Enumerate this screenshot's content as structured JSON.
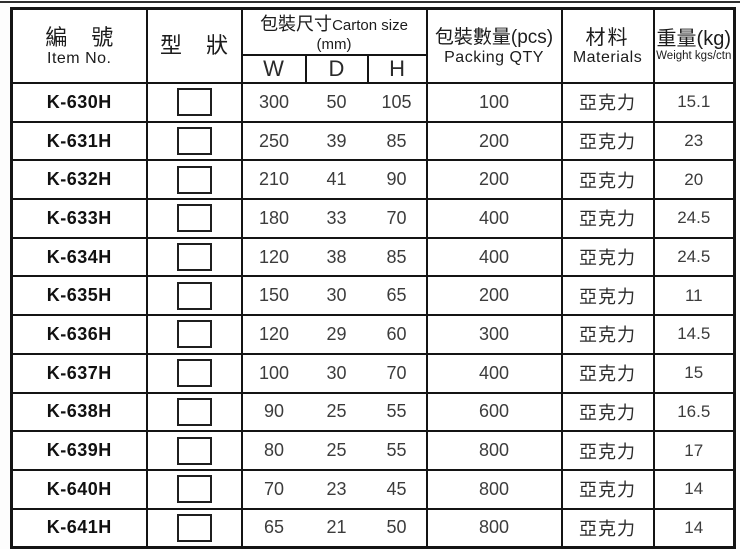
{
  "header": {
    "item_no_zh": "編 號",
    "item_no_en": "Item No.",
    "shape_zh": "型 狀",
    "carton_zh": "包裝尺寸",
    "carton_en": "Carton size (mm)",
    "carton_sub": [
      "W",
      "D",
      "H"
    ],
    "qty_zh": "包裝數量(pcs)",
    "qty_en": "Packing QTY",
    "materials_zh": "材料",
    "materials_en": "Materials",
    "weight_zh": "重量(kg)",
    "weight_en": "Weight kgs/ctn"
  },
  "rows": [
    {
      "item": "K-630H",
      "w": "300",
      "d": "50",
      "h": "105",
      "qty": "100",
      "material": "亞克力",
      "weight": "15.1"
    },
    {
      "item": "K-631H",
      "w": "250",
      "d": "39",
      "h": "85",
      "qty": "200",
      "material": "亞克力",
      "weight": "23"
    },
    {
      "item": "K-632H",
      "w": "210",
      "d": "41",
      "h": "90",
      "qty": "200",
      "material": "亞克力",
      "weight": "20"
    },
    {
      "item": "K-633H",
      "w": "180",
      "d": "33",
      "h": "70",
      "qty": "400",
      "material": "亞克力",
      "weight": "24.5"
    },
    {
      "item": "K-634H",
      "w": "120",
      "d": "38",
      "h": "85",
      "qty": "400",
      "material": "亞克力",
      "weight": "24.5"
    },
    {
      "item": "K-635H",
      "w": "150",
      "d": "30",
      "h": "65",
      "qty": "200",
      "material": "亞克力",
      "weight": "11"
    },
    {
      "item": "K-636H",
      "w": "120",
      "d": "29",
      "h": "60",
      "qty": "300",
      "material": "亞克力",
      "weight": "14.5"
    },
    {
      "item": "K-637H",
      "w": "100",
      "d": "30",
      "h": "70",
      "qty": "400",
      "material": "亞克力",
      "weight": "15"
    },
    {
      "item": "K-638H",
      "w": "90",
      "d": "25",
      "h": "55",
      "qty": "600",
      "material": "亞克力",
      "weight": "16.5"
    },
    {
      "item": "K-639H",
      "w": "80",
      "d": "25",
      "h": "55",
      "qty": "800",
      "material": "亞克力",
      "weight": "17"
    },
    {
      "item": "K-640H",
      "w": "70",
      "d": "23",
      "h": "45",
      "qty": "800",
      "material": "亞克力",
      "weight": "14"
    },
    {
      "item": "K-641H",
      "w": "65",
      "d": "21",
      "h": "50",
      "qty": "800",
      "material": "亞克力",
      "weight": "14"
    }
  ],
  "colors": {
    "page_bg": "#fdfdfd",
    "border": "#141414",
    "rule": "#2e2e2e",
    "header_text": "#1c1c1c",
    "body_text": "#3c3c3c",
    "item_text": "#111111"
  }
}
